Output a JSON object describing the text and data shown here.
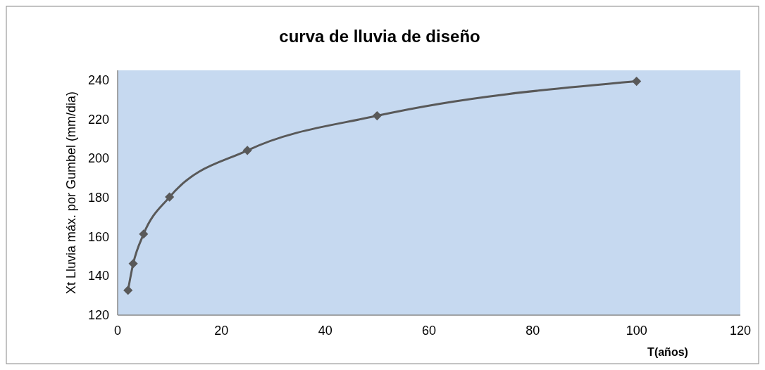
{
  "chart_data": {
    "type": "line",
    "title": "curva de lluvia de diseño",
    "xlabel": "T(años)",
    "ylabel": "Xt Lluvia máx. por Gumbel (mm/dia)",
    "x": [
      2,
      3,
      5,
      10,
      25,
      50,
      100
    ],
    "series": [
      {
        "color": "#595959",
        "values": [
          132.7,
          146.3,
          161.4,
          180.3,
          204.1,
          221.8,
          239.4
        ]
      }
    ],
    "xlim": [
      0,
      120
    ],
    "xticks": [
      0,
      20,
      40,
      60,
      80,
      100,
      120
    ],
    "ylim": [
      120,
      245
    ],
    "yticks": [
      120,
      140,
      160,
      180,
      200,
      220,
      240
    ],
    "grid": false,
    "marker": "diamond",
    "line_style": "solid"
  }
}
